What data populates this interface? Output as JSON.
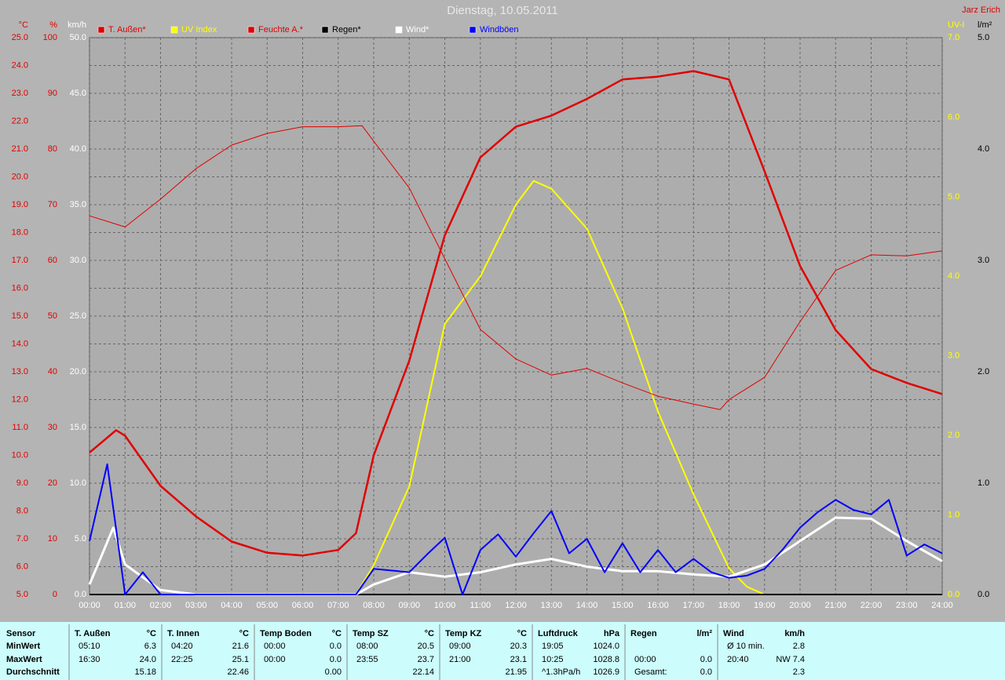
{
  "chart_data": {
    "type": "line",
    "title": "Dienstag, 10.05.2011",
    "author": "Jarz Erich",
    "grid": true,
    "xlim": [
      0,
      24
    ],
    "xticks": [
      {
        "value": 0,
        "label": "00:00"
      },
      {
        "value": 1,
        "label": "01:00"
      },
      {
        "value": 2,
        "label": "02:00"
      },
      {
        "value": 3,
        "label": "03:00"
      },
      {
        "value": 4,
        "label": "04:00"
      },
      {
        "value": 5,
        "label": "05:00"
      },
      {
        "value": 6,
        "label": "06:00"
      },
      {
        "value": 7,
        "label": "07:00"
      },
      {
        "value": 8,
        "label": "08:00"
      },
      {
        "value": 9,
        "label": "09:00"
      },
      {
        "value": 10,
        "label": "10:00"
      },
      {
        "value": 11,
        "label": "11:00"
      },
      {
        "value": 12,
        "label": "12:00"
      },
      {
        "value": 13,
        "label": "13:00"
      },
      {
        "value": 14,
        "label": "14:00"
      },
      {
        "value": 15,
        "label": "15:00"
      },
      {
        "value": 16,
        "label": "16:00"
      },
      {
        "value": 17,
        "label": "17:00"
      },
      {
        "value": 18,
        "label": "18:00"
      },
      {
        "value": 19,
        "label": "19:00"
      },
      {
        "value": 20,
        "label": "20:00"
      },
      {
        "value": 21,
        "label": "21:00"
      },
      {
        "value": 22,
        "label": "22:00"
      },
      {
        "value": 23,
        "label": "23:00"
      },
      {
        "value": 24,
        "label": "24:00"
      }
    ],
    "yaxes": [
      {
        "label": "°C",
        "color": "#e00000",
        "lim": [
          5,
          25
        ],
        "ticks": [
          {
            "value": 5,
            "label": "5.0"
          },
          {
            "value": 6,
            "label": "6.0"
          },
          {
            "value": 7,
            "label": "7.0"
          },
          {
            "value": 8,
            "label": "8.0"
          },
          {
            "value": 9,
            "label": "9.0"
          },
          {
            "value": 10,
            "label": "10.0"
          },
          {
            "value": 11,
            "label": "11.0"
          },
          {
            "value": 12,
            "label": "12.0"
          },
          {
            "value": 13,
            "label": "13.0"
          },
          {
            "value": 14,
            "label": "14.0"
          },
          {
            "value": 15,
            "label": "15.0"
          },
          {
            "value": 16,
            "label": "16.0"
          },
          {
            "value": 17,
            "label": "17.0"
          },
          {
            "value": 18,
            "label": "18.0"
          },
          {
            "value": 19,
            "label": "19.0"
          },
          {
            "value": 20,
            "label": "20.0"
          },
          {
            "value": 21,
            "label": "21.0"
          },
          {
            "value": 22,
            "label": "22.0"
          },
          {
            "value": 23,
            "label": "23.0"
          },
          {
            "value": 24,
            "label": "24.0"
          },
          {
            "value": 25,
            "label": "25.0"
          }
        ]
      },
      {
        "label": "%",
        "color": "#e00000",
        "lim": [
          0,
          100
        ],
        "ticks": [
          0,
          10,
          20,
          30,
          40,
          50,
          60,
          70,
          80,
          90,
          100
        ]
      },
      {
        "label": "km/h",
        "color": "#ffffff",
        "lim": [
          0,
          50
        ],
        "ticks": [
          {
            "value": 0,
            "label": "0.0"
          },
          {
            "value": 5,
            "label": "5.0"
          },
          {
            "value": 10,
            "label": "10.0"
          },
          {
            "value": 15,
            "label": "15.0"
          },
          {
            "value": 20,
            "label": "20.0"
          },
          {
            "value": 25,
            "label": "25.0"
          },
          {
            "value": 30,
            "label": "30.0"
          },
          {
            "value": 35,
            "label": "35.0"
          },
          {
            "value": 40,
            "label": "40.0"
          },
          {
            "value": 45,
            "label": "45.0"
          },
          {
            "value": 50,
            "label": "50.0"
          }
        ]
      },
      {
        "label": "UV-I",
        "color": "#ffff00",
        "lim": [
          0,
          7
        ],
        "ticks": [
          {
            "value": 0,
            "label": "0.0"
          },
          {
            "value": 1,
            "label": "1.0"
          },
          {
            "value": 2,
            "label": "2.0"
          },
          {
            "value": 3,
            "label": "3.0"
          },
          {
            "value": 4,
            "label": "4.0"
          },
          {
            "value": 5,
            "label": "5.0"
          },
          {
            "value": 6,
            "label": "6.0"
          },
          {
            "value": 7,
            "label": "7.0"
          }
        ]
      },
      {
        "label": "l/m²",
        "color": "#000000",
        "lim": [
          0,
          5
        ],
        "ticks": [
          {
            "value": 0,
            "label": "0.0"
          },
          {
            "value": 1,
            "label": "1.0"
          },
          {
            "value": 2,
            "label": "2.0"
          },
          {
            "value": 3,
            "label": "3.0"
          },
          {
            "value": 4,
            "label": "4.0"
          },
          {
            "value": 5,
            "label": "5.0"
          }
        ]
      }
    ],
    "series": [
      {
        "name": "T. Außen*",
        "color": "#e00000",
        "axis": "°C",
        "width": 2.5,
        "x": [
          0,
          0.75,
          1,
          2,
          3,
          4,
          5,
          6,
          7,
          7.5,
          8,
          9,
          10,
          11,
          12,
          13,
          14,
          15,
          16,
          17,
          18,
          19,
          20,
          21,
          22,
          23,
          24
        ],
        "values": [
          10.1,
          10.9,
          10.7,
          8.9,
          7.8,
          6.9,
          6.5,
          6.4,
          6.6,
          7.2,
          10.0,
          13.4,
          17.9,
          20.7,
          21.8,
          22.2,
          22.8,
          23.5,
          23.6,
          23.8,
          23.5,
          20.2,
          16.8,
          14.5,
          13.1,
          12.6,
          12.2
        ]
      },
      {
        "name": "UV Index",
        "color": "#ffff00",
        "axis": "UV-I",
        "width": 2,
        "x": [
          0,
          7.5,
          8,
          9,
          10,
          11,
          12,
          12.5,
          13,
          14,
          15,
          16,
          17,
          18,
          18.5,
          19,
          24
        ],
        "values": [
          0,
          0,
          0.37,
          1.36,
          3.4,
          4.0,
          4.9,
          5.2,
          5.1,
          4.6,
          3.6,
          2.3,
          1.26,
          0.33,
          0.1,
          0,
          0
        ]
      },
      {
        "name": "Feuchte A.*",
        "color": "#e00000",
        "axis": "%",
        "width": 1,
        "x": [
          0,
          1,
          2,
          3,
          4,
          5,
          6,
          7,
          7.67,
          8,
          9,
          10,
          11,
          12,
          13,
          14,
          15,
          16,
          17,
          17.75,
          18,
          19,
          20,
          21,
          22,
          23,
          24
        ],
        "values": [
          68,
          66,
          71,
          76.5,
          80.7,
          82.8,
          84,
          84,
          84.2,
          81.4,
          73,
          60.3,
          47.6,
          42.3,
          39.4,
          40.6,
          38,
          35.6,
          34.2,
          33.2,
          35,
          39,
          49,
          58.2,
          61,
          60.8,
          61.7
        ]
      },
      {
        "name": "Regen*",
        "color": "#000000",
        "axis": "l/m²",
        "width": 2,
        "x": [
          0,
          24
        ],
        "values": [
          0,
          0
        ]
      },
      {
        "name": "Wind*",
        "color": "#ffffff",
        "axis": "km/h",
        "width": 3,
        "x": [
          0,
          0.67,
          1,
          2,
          3,
          7.5,
          8,
          9,
          10,
          11,
          12,
          13,
          14,
          15,
          16,
          17,
          18,
          19,
          20,
          21,
          22,
          23,
          24
        ],
        "values": [
          0.9,
          6,
          2.7,
          0.4,
          0,
          0,
          0.9,
          2,
          1.6,
          2,
          2.7,
          3.2,
          2.5,
          2.1,
          2.1,
          1.8,
          1.6,
          2.7,
          4.8,
          6.9,
          6.8,
          4.8,
          3.0
        ]
      },
      {
        "name": "Windböen",
        "color": "#0000ff",
        "axis": "km/h",
        "width": 2,
        "x": [
          0,
          0.5,
          1,
          1.5,
          2,
          7.5,
          8,
          9,
          9.5,
          10,
          10.5,
          11,
          11.5,
          12,
          12.5,
          13,
          13.5,
          14,
          14.5,
          15,
          15.5,
          16,
          16.5,
          17,
          17.5,
          18,
          18.5,
          19,
          19.5,
          20,
          20.5,
          21,
          21.5,
          22,
          22.5,
          23,
          23.5,
          24
        ],
        "values": [
          4.8,
          11.7,
          0,
          2.0,
          0,
          0,
          2.3,
          2.0,
          3.6,
          5.1,
          0,
          4.0,
          5.4,
          3.4,
          5.5,
          7.5,
          3.7,
          5.0,
          2.0,
          4.6,
          2.0,
          4.0,
          2.0,
          3.2,
          2.0,
          1.5,
          1.7,
          2.3,
          4.0,
          6.0,
          7.4,
          8.5,
          7.6,
          7.2,
          8.5,
          3.5,
          4.5,
          3.7
        ]
      }
    ]
  },
  "stats_table": {
    "row_labels": [
      "Sensor",
      "MinWert",
      "MaxWert",
      "Durchschnitt"
    ],
    "groups": [
      {
        "name": "T. Außen",
        "unit": "°C",
        "min": {
          "time": "05:10",
          "value": "6.3"
        },
        "max": {
          "time": "16:30",
          "value": "24.0"
        },
        "avg": {
          "value": "15.18"
        }
      },
      {
        "name": "T. Innen",
        "unit": "°C",
        "min": {
          "time": "04:20",
          "value": "21.6"
        },
        "max": {
          "time": "22:25",
          "value": "25.1"
        },
        "avg": {
          "value": "22.46"
        }
      },
      {
        "name": "Temp Boden",
        "unit": "°C",
        "min": {
          "time": "00:00",
          "value": "0.0"
        },
        "max": {
          "time": "00:00",
          "value": "0.0"
        },
        "avg": {
          "value": "0.00"
        }
      },
      {
        "name": "Temp SZ",
        "unit": "°C",
        "min": {
          "time": "08:00",
          "value": "20.5"
        },
        "max": {
          "time": "23:55",
          "value": "23.7"
        },
        "avg": {
          "value": "22.14"
        }
      },
      {
        "name": "Temp KZ",
        "unit": "°C",
        "min": {
          "time": "09:00",
          "value": "20.3"
        },
        "max": {
          "time": "21:00",
          "value": "23.1"
        },
        "avg": {
          "value": "21.95"
        }
      },
      {
        "name": "Luftdruck",
        "unit": "hPa",
        "min": {
          "time": "19:05",
          "value": "1024.0"
        },
        "max": {
          "time": "10:25",
          "value": "1028.8"
        },
        "avg": {
          "time": "^1.3hPa/h",
          "value": "1026.9"
        }
      },
      {
        "name": "Regen",
        "unit": "l/m²",
        "max": {
          "time": "00:00",
          "value": "0.0"
        },
        "avg": {
          "time": "Gesamt:",
          "value": "0.0"
        }
      },
      {
        "name": "Wind",
        "unit": "km/h",
        "min": {
          "time": "Ø 10 min.",
          "value": "2.8"
        },
        "max": {
          "time": "20:40",
          "value": "NW 7.4"
        },
        "avg": {
          "value": "2.3"
        }
      }
    ]
  }
}
